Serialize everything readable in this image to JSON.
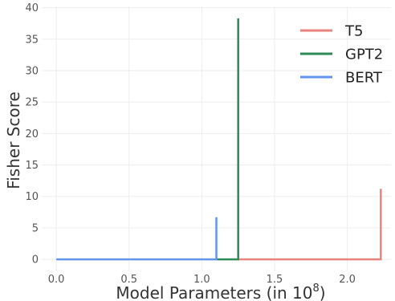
{
  "chart_data": {
    "type": "line",
    "title": "",
    "xlabel": "Model Parameters (in 10^8)",
    "xlabel_main": "Model Parameters (in 10",
    "xlabel_exp": "8",
    "xlabel_close": ")",
    "ylabel": "Fisher Score",
    "xlim": [
      -0.1,
      2.3
    ],
    "ylim": [
      -1.9,
      40.2
    ],
    "xticks": [
      0.0,
      0.5,
      1.0,
      1.5,
      2.0
    ],
    "xtick_labels": [
      "0.0",
      "0.5",
      "1.0",
      "1.5",
      "2.0"
    ],
    "yticks": [
      0,
      5,
      10,
      15,
      20,
      25,
      30,
      35,
      40
    ],
    "ytick_labels": [
      "0",
      "5",
      "10",
      "15",
      "20",
      "25",
      "30",
      "35",
      "40"
    ],
    "grid": true,
    "legend_position": "top-right",
    "series": [
      {
        "name": "T5",
        "color": "#e8837e",
        "points": [
          [
            1.25,
            0
          ],
          [
            2.23,
            0
          ],
          [
            2.23,
            11.2
          ]
        ]
      },
      {
        "name": "GPT2",
        "color": "#2e8b57",
        "points": [
          [
            1.1,
            0
          ],
          [
            1.25,
            0
          ],
          [
            1.25,
            38.3
          ]
        ]
      },
      {
        "name": "BERT",
        "color": "#6495ed",
        "points": [
          [
            0.0,
            0
          ],
          [
            1.1,
            0
          ],
          [
            1.1,
            6.7
          ]
        ]
      }
    ]
  }
}
